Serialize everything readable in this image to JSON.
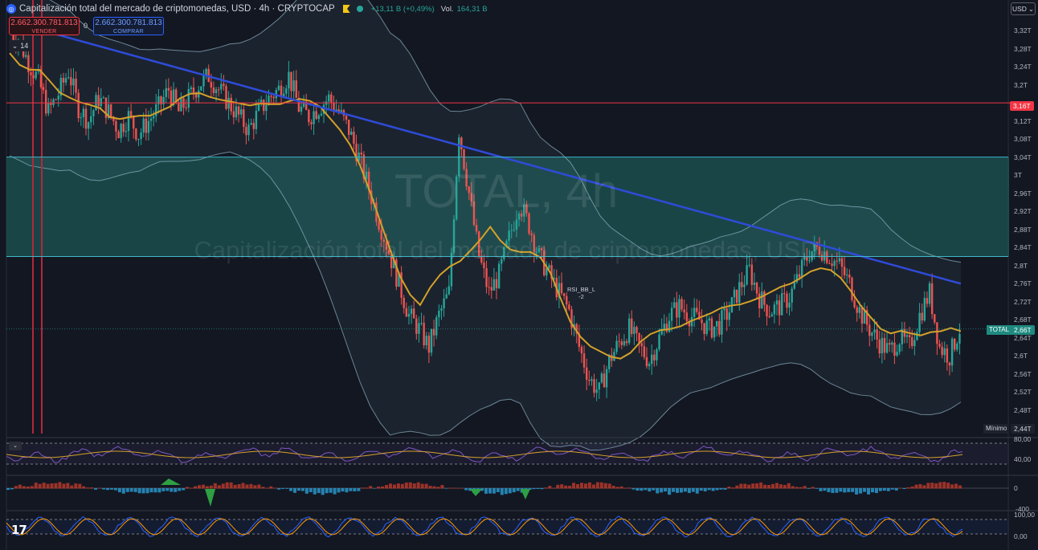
{
  "header": {
    "title": "Capitalización total del mercado de criptomonedas, USD · 4h · CRYPTOCAP",
    "change": "+13,11 B (+0,49%)",
    "volume_label": "Vol.",
    "volume": "164,31 B"
  },
  "trade": {
    "sell_price": "2.662.300.781.813",
    "sell_label": "VENDER",
    "spread": "0",
    "buy_price": "2.662.300.781.813",
    "buy_label": "COMPRAR"
  },
  "legend_collapse": "14",
  "currency": "USD",
  "watermark": {
    "symbol": "TOTAL, 4h",
    "name": "Capitalización total del mercado de criptomonedas, USD"
  },
  "price_axis": {
    "ticks": [
      "3,32T",
      "3,28T",
      "3,24T",
      "3,2T",
      "3,12T",
      "3,08T",
      "3,04T",
      "3T",
      "2,96T",
      "2,92T",
      "2,88T",
      "2,84T",
      "2,8T",
      "2,76T",
      "2,72T",
      "2,68T",
      "2,64T",
      "2,6T",
      "2,56T",
      "2,52T",
      "2,48T"
    ],
    "alert_price": "3,16T",
    "current_symbol": "TOTAL",
    "current_price": "2,66T",
    "low_label": "Mínimo",
    "low_price": "2,44T"
  },
  "chart_annotation": {
    "line1": "RSI_BB_L",
    "line2": "-2"
  },
  "rsi_pane": {
    "ticks": [
      "80,00",
      "40,00"
    ]
  },
  "macd_pane": {
    "ticks": [
      "0",
      "-400"
    ]
  },
  "stoch_pane": {
    "ticks": [
      "100,00",
      "0,00"
    ]
  },
  "colors": {
    "background": "#131722",
    "up": "#26a69a",
    "down": "#ef5350",
    "ma_fast": "#d4a12a",
    "ma_slow": "#2f4bd8",
    "alert": "#f23645",
    "zone": "#1f6b64"
  },
  "chart_data": {
    "type": "candlestick",
    "symbol": "TOTAL",
    "interval": "4h",
    "y_unit": "T USD",
    "ylim": [
      2.44,
      3.33
    ],
    "horizontal_levels": [
      3.16,
      3.04,
      2.82
    ],
    "zone": [
      2.82,
      3.04
    ],
    "current": 2.66,
    "low": 2.44,
    "close_path": [
      3.32,
      3.3,
      3.25,
      3.21,
      3.14,
      3.18,
      3.23,
      3.15,
      3.12,
      3.17,
      3.14,
      3.1,
      3.13,
      3.09,
      3.12,
      3.15,
      3.19,
      3.14,
      3.17,
      3.2,
      3.22,
      3.19,
      3.16,
      3.13,
      3.1,
      3.14,
      3.17,
      3.19,
      3.22,
      3.15,
      3.13,
      3.15,
      3.17,
      3.14,
      3.1,
      3.04,
      2.97,
      2.9,
      2.83,
      2.76,
      2.69,
      2.66,
      2.62,
      2.69,
      2.74,
      3.1,
      2.96,
      2.82,
      2.74,
      2.78,
      2.86,
      2.94,
      2.89,
      2.82,
      2.78,
      2.74,
      2.7,
      2.62,
      2.55,
      2.52,
      2.59,
      2.63,
      2.66,
      2.62,
      2.59,
      2.64,
      2.69,
      2.71,
      2.69,
      2.68,
      2.66,
      2.67,
      2.7,
      2.75,
      2.79,
      2.73,
      2.7,
      2.71,
      2.73,
      2.78,
      2.83,
      2.84,
      2.82,
      2.8,
      2.76,
      2.7,
      2.66,
      2.63,
      2.61,
      2.64,
      2.62,
      2.69,
      2.74,
      2.62,
      2.6,
      2.66
    ]
  }
}
